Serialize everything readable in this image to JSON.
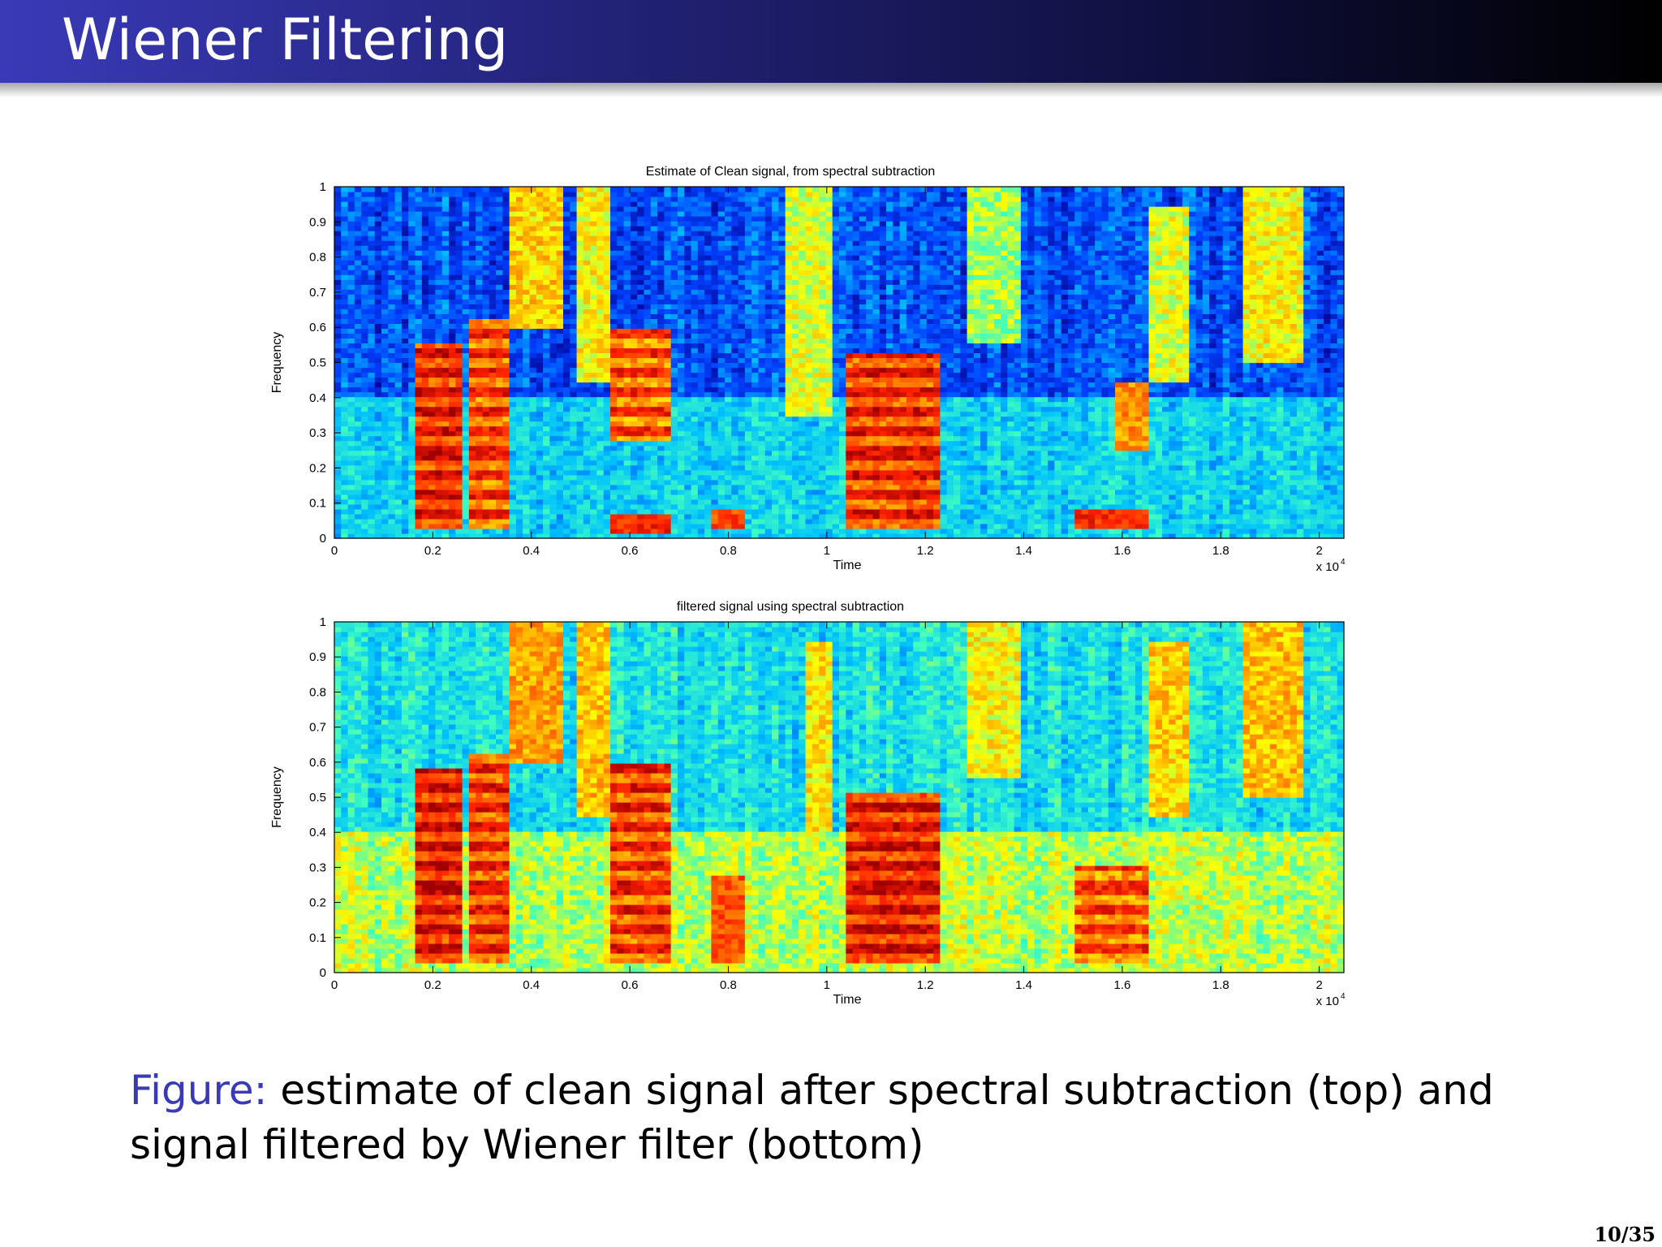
{
  "slide": {
    "title": "Wiener Filtering",
    "caption_label": "Figure:",
    "caption_text": " estimate of clean signal after spectral subtraction (top) and signal filtered by Wiener filter (bottom)",
    "page_number": "10/35"
  },
  "chart_data": [
    {
      "type": "heatmap",
      "title": "Estimate of Clean signal, from spectral subtraction",
      "xlabel": "Time",
      "ylabel": "Frequency",
      "x_exponent": "x 10",
      "x_exponent_power": "4",
      "xlim": [
        0,
        20500
      ],
      "ylim": [
        0,
        1
      ],
      "xticks": [
        0,
        2000,
        4000,
        6000,
        8000,
        10000,
        12000,
        14000,
        16000,
        18000,
        20000
      ],
      "xtick_labels": [
        "0",
        "0.2",
        "0.4",
        "0.6",
        "0.8",
        "1",
        "1.2",
        "1.4",
        "1.6",
        "1.8",
        "2"
      ],
      "yticks": [
        0,
        0.1,
        0.2,
        0.3,
        0.4,
        0.5,
        0.6,
        0.7,
        0.8,
        0.9,
        1
      ],
      "ytick_labels": [
        "0",
        "0.1",
        "0.2",
        "0.3",
        "0.4",
        "0.5",
        "0.6",
        "0.7",
        "0.8",
        "0.9",
        "1"
      ],
      "colormap": [
        "#00008f",
        "#0040ff",
        "#00c0ff",
        "#40ffbf",
        "#ffff00",
        "#ff8000",
        "#ff2000",
        "#a00000"
      ],
      "background_level": 0.15,
      "noise_band_level": 0.32,
      "noise_band_range": [
        0.0,
        0.4
      ],
      "segments": [
        {
          "x": [
            1700,
            2600
          ],
          "y": [
            0.03,
            0.56
          ],
          "level": 0.88,
          "harmonic": true
        },
        {
          "x": [
            2800,
            3500
          ],
          "y": [
            0.03,
            0.62
          ],
          "level": 0.82,
          "harmonic": true
        },
        {
          "x": [
            3600,
            4600
          ],
          "y": [
            0.6,
            1.0
          ],
          "level": 0.62,
          "harmonic": false
        },
        {
          "x": [
            4900,
            5600
          ],
          "y": [
            0.45,
            1.0
          ],
          "level": 0.58,
          "harmonic": false
        },
        {
          "x": [
            5600,
            6900
          ],
          "y": [
            0.28,
            0.6
          ],
          "level": 0.8,
          "harmonic": true
        },
        {
          "x": [
            5600,
            6900
          ],
          "y": [
            0.02,
            0.07
          ],
          "level": 0.85,
          "harmonic": false
        },
        {
          "x": [
            7700,
            8400
          ],
          "y": [
            0.03,
            0.09
          ],
          "level": 0.8,
          "harmonic": false
        },
        {
          "x": [
            9200,
            10100
          ],
          "y": [
            0.35,
            1.0
          ],
          "level": 0.55,
          "harmonic": false
        },
        {
          "x": [
            10400,
            12300
          ],
          "y": [
            0.03,
            0.53
          ],
          "level": 0.86,
          "harmonic": true
        },
        {
          "x": [
            12800,
            14000
          ],
          "y": [
            0.55,
            1.0
          ],
          "level": 0.5,
          "harmonic": false
        },
        {
          "x": [
            15000,
            16600
          ],
          "y": [
            0.03,
            0.09
          ],
          "level": 0.85,
          "harmonic": false
        },
        {
          "x": [
            15800,
            16600
          ],
          "y": [
            0.25,
            0.45
          ],
          "level": 0.7,
          "harmonic": false
        },
        {
          "x": [
            16600,
            17400
          ],
          "y": [
            0.45,
            0.95
          ],
          "level": 0.55,
          "harmonic": false
        },
        {
          "x": [
            18500,
            19700
          ],
          "y": [
            0.5,
            1.0
          ],
          "level": 0.58,
          "harmonic": false
        }
      ]
    },
    {
      "type": "heatmap",
      "title": "filtered signal using spectral subtraction",
      "xlabel": "Time",
      "ylabel": "Frequency",
      "x_exponent": "x 10",
      "x_exponent_power": "4",
      "xlim": [
        0,
        20500
      ],
      "ylim": [
        0,
        1
      ],
      "xticks": [
        0,
        2000,
        4000,
        6000,
        8000,
        10000,
        12000,
        14000,
        16000,
        18000,
        20000
      ],
      "xtick_labels": [
        "0",
        "0.2",
        "0.4",
        "0.6",
        "0.8",
        "1",
        "1.2",
        "1.4",
        "1.6",
        "1.8",
        "2"
      ],
      "yticks": [
        0,
        0.1,
        0.2,
        0.3,
        0.4,
        0.5,
        0.6,
        0.7,
        0.8,
        0.9,
        1
      ],
      "ytick_labels": [
        "0",
        "0.1",
        "0.2",
        "0.3",
        "0.4",
        "0.5",
        "0.6",
        "0.7",
        "0.8",
        "0.9",
        "1"
      ],
      "colormap": [
        "#00008f",
        "#0040ff",
        "#00c0ff",
        "#40ffbf",
        "#ffff00",
        "#ff8000",
        "#ff2000",
        "#a00000"
      ],
      "background_level": 0.35,
      "noise_band_level": 0.52,
      "noise_band_range": [
        0.0,
        0.4
      ],
      "segments": [
        {
          "x": [
            1700,
            2600
          ],
          "y": [
            0.03,
            0.58
          ],
          "level": 0.9,
          "harmonic": true
        },
        {
          "x": [
            2800,
            3500
          ],
          "y": [
            0.03,
            0.63
          ],
          "level": 0.85,
          "harmonic": true
        },
        {
          "x": [
            3600,
            4600
          ],
          "y": [
            0.6,
            1.0
          ],
          "level": 0.68,
          "harmonic": false
        },
        {
          "x": [
            4900,
            5600
          ],
          "y": [
            0.45,
            1.0
          ],
          "level": 0.64,
          "harmonic": false
        },
        {
          "x": [
            5600,
            6900
          ],
          "y": [
            0.03,
            0.6
          ],
          "level": 0.84,
          "harmonic": true
        },
        {
          "x": [
            7700,
            8400
          ],
          "y": [
            0.03,
            0.28
          ],
          "level": 0.78,
          "harmonic": false
        },
        {
          "x": [
            9600,
            10100
          ],
          "y": [
            0.4,
            0.95
          ],
          "level": 0.6,
          "harmonic": false
        },
        {
          "x": [
            10400,
            12300
          ],
          "y": [
            0.03,
            0.52
          ],
          "level": 0.9,
          "harmonic": true
        },
        {
          "x": [
            12800,
            14000
          ],
          "y": [
            0.55,
            1.0
          ],
          "level": 0.58,
          "harmonic": false
        },
        {
          "x": [
            15000,
            16600
          ],
          "y": [
            0.03,
            0.3
          ],
          "level": 0.8,
          "harmonic": true
        },
        {
          "x": [
            16600,
            17400
          ],
          "y": [
            0.45,
            0.95
          ],
          "level": 0.62,
          "harmonic": false
        },
        {
          "x": [
            18500,
            19700
          ],
          "y": [
            0.5,
            1.0
          ],
          "level": 0.64,
          "harmonic": false
        }
      ]
    }
  ]
}
